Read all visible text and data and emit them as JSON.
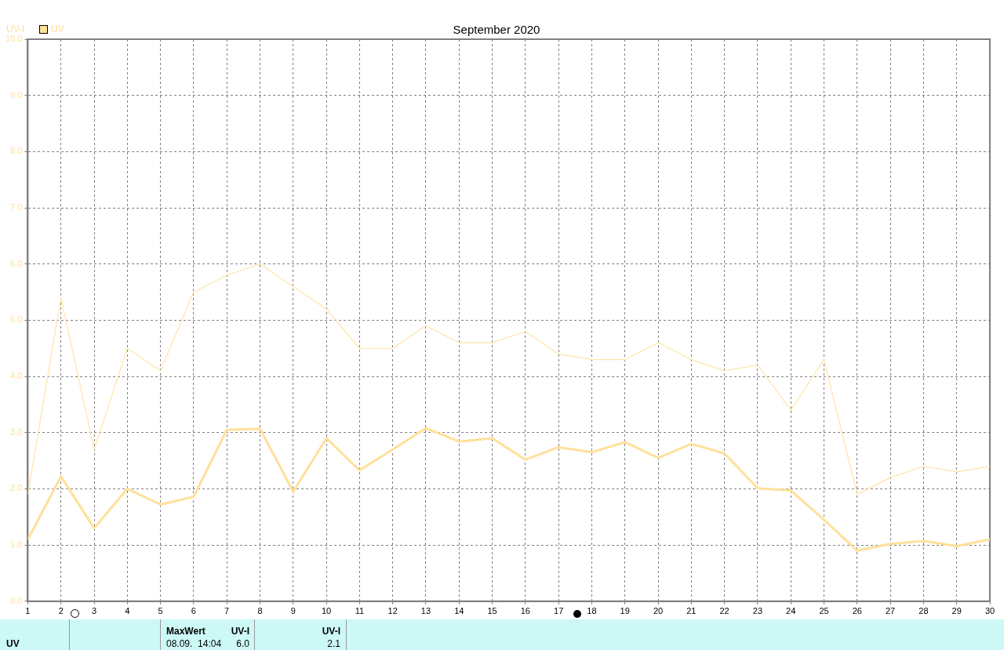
{
  "chart_data": {
    "type": "line",
    "title": "September 2020",
    "ylabel": "UV-I",
    "x": [
      1,
      2,
      3,
      4,
      5,
      6,
      7,
      8,
      9,
      10,
      11,
      12,
      13,
      14,
      15,
      16,
      17,
      18,
      19,
      20,
      21,
      22,
      23,
      24,
      25,
      26,
      27,
      28,
      29,
      30
    ],
    "series": [
      {
        "name": "UV",
        "color": "#ffe09a",
        "values": [
          1.1,
          2.22,
          1.3,
          2.0,
          1.72,
          1.86,
          3.05,
          3.07,
          1.95,
          2.9,
          2.33,
          2.7,
          3.08,
          2.84,
          2.9,
          2.52,
          2.74,
          2.65,
          2.83,
          2.55,
          2.8,
          2.63,
          2.01,
          1.97,
          1.45,
          0.9,
          1.02,
          1.07,
          0.98,
          1.1
        ]
      },
      {
        "color": "#ffe4a8",
        "values": [
          1.9,
          5.4,
          2.7,
          4.5,
          4.1,
          5.5,
          5.8,
          6.0,
          5.6,
          5.2,
          4.5,
          4.5,
          4.9,
          4.6,
          4.6,
          4.8,
          4.4,
          4.3,
          4.3,
          4.6,
          4.3,
          4.1,
          4.2,
          3.4,
          4.3,
          1.9,
          2.2,
          2.4,
          2.3,
          2.4
        ]
      }
    ],
    "xlim": [
      1,
      30
    ],
    "xticks": [
      1,
      2,
      3,
      4,
      5,
      6,
      7,
      8,
      9,
      10,
      11,
      12,
      13,
      14,
      15,
      16,
      17,
      18,
      19,
      20,
      21,
      22,
      23,
      24,
      25,
      26,
      27,
      28,
      29,
      30
    ],
    "ylim": [
      0,
      10
    ],
    "yticks": [
      {
        "value": 0,
        "label": "0.0"
      },
      {
        "value": 1,
        "label": "1.0"
      },
      {
        "value": 2,
        "label": "2.0"
      },
      {
        "value": 3,
        "label": "3.0"
      },
      {
        "value": 4,
        "label": "4.0"
      },
      {
        "value": 5,
        "label": "5.0"
      },
      {
        "value": 6,
        "label": "6.0"
      },
      {
        "value": 7,
        "label": "7.0"
      },
      {
        "value": 8,
        "label": "8.0"
      },
      {
        "value": 9,
        "label": "9.0"
      },
      {
        "value": 10,
        "label": "10.0"
      }
    ],
    "grid": true,
    "legend": "top left",
    "marker": "none",
    "line_style": "solid",
    "annotations": [
      "UV",
      "MaxWert",
      "UV-I",
      "08.09.  14:04",
      "6.0",
      "UV-I",
      "2.1"
    ]
  }
}
